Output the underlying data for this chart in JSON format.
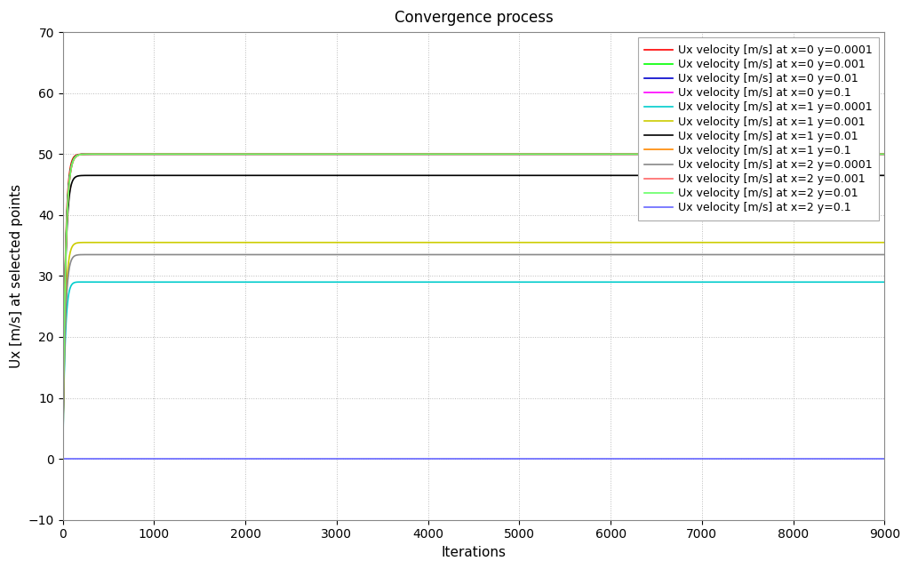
{
  "title": "Convergence process",
  "xlabel": "Iterations",
  "ylabel": "Ux [m/s] at selected points",
  "xlim": [
    0,
    9000
  ],
  "ylim": [
    -10,
    70
  ],
  "yticks": [
    -10,
    0,
    10,
    20,
    30,
    40,
    50,
    60,
    70
  ],
  "xticks": [
    0,
    1000,
    2000,
    3000,
    4000,
    5000,
    6000,
    7000,
    8000,
    9000
  ],
  "series": [
    {
      "label": "Ux velocity [m/s] at x=0 y=0.0001",
      "color": "#ff0000",
      "final_value": 50.0,
      "peak_value": 52.0,
      "tau": 30
    },
    {
      "label": "Ux velocity [m/s] at x=0 y=0.001",
      "color": "#00ff00",
      "final_value": 50.0,
      "peak_value": 51.0,
      "tau": 30
    },
    {
      "label": "Ux velocity [m/s] at x=0 y=0.01",
      "color": "#0000cc",
      "final_value": 50.0,
      "peak_value": 50.5,
      "tau": 30
    },
    {
      "label": "Ux velocity [m/s] at x=0 y=0.1",
      "color": "#ff00ff",
      "final_value": 50.0,
      "peak_value": 50.0,
      "tau": 30
    },
    {
      "label": "Ux velocity [m/s] at x=1 y=0.0001",
      "color": "#00cccc",
      "final_value": 29.0,
      "peak_value": 31.0,
      "tau": 30
    },
    {
      "label": "Ux velocity [m/s] at x=1 y=0.001",
      "color": "#cccc00",
      "final_value": 35.5,
      "peak_value": 37.0,
      "tau": 30
    },
    {
      "label": "Ux velocity [m/s] at x=1 y=0.01",
      "color": "#000000",
      "final_value": 46.5,
      "peak_value": 48.0,
      "tau": 30
    },
    {
      "label": "Ux velocity [m/s] at x=1 y=0.1",
      "color": "#ff8800",
      "final_value": 50.0,
      "peak_value": 50.0,
      "tau": 30
    },
    {
      "label": "Ux velocity [m/s] at x=2 y=0.0001",
      "color": "#888888",
      "final_value": 33.5,
      "peak_value": 35.0,
      "tau": 30
    },
    {
      "label": "Ux velocity [m/s] at x=2 y=0.001",
      "color": "#ff6666",
      "final_value": 50.0,
      "peak_value": 50.0,
      "tau": 30
    },
    {
      "label": "Ux velocity [m/s] at x=2 y=0.01",
      "color": "#66ff66",
      "final_value": 50.0,
      "peak_value": 50.0,
      "tau": 30
    },
    {
      "label": "Ux velocity [m/s] at x=2 y=0.1",
      "color": "#6666ff",
      "final_value": 0.0,
      "peak_value": 0.0,
      "tau": 30
    }
  ],
  "background_color": "#ffffff",
  "grid_color": "#aaaaaa",
  "font_family": "DejaVu Sans",
  "title_fontsize": 12,
  "label_fontsize": 11,
  "tick_fontsize": 10,
  "legend_fontsize": 9
}
